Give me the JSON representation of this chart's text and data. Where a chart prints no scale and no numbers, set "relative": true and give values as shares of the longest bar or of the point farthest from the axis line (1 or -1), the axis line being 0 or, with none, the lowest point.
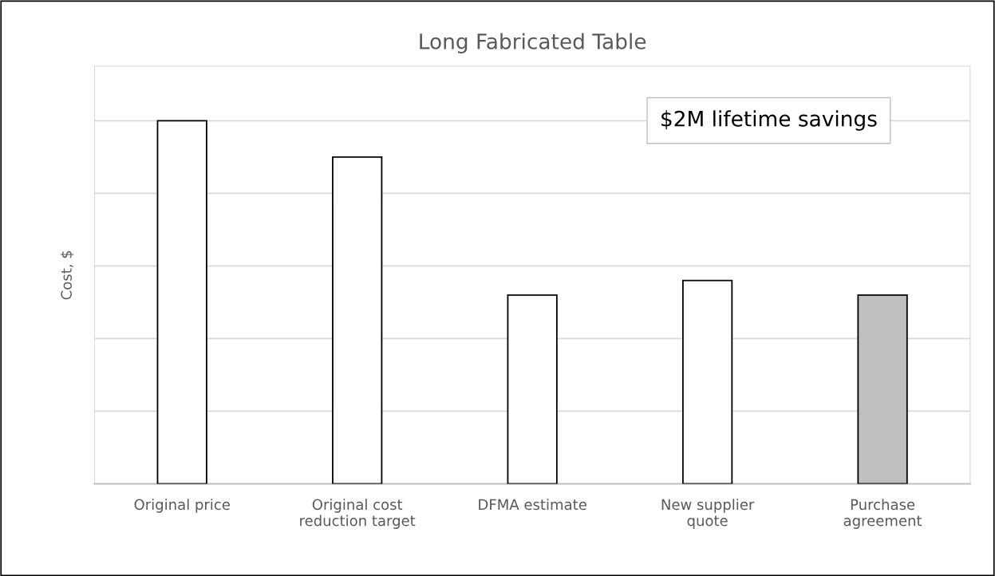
{
  "chart_data": {
    "type": "bar",
    "title": "Long Fabricated Table",
    "ylabel": "Cost, $",
    "categories": [
      "Original price",
      "Original cost\nreduction target",
      "DFMA estimate",
      "New supplier\nquote",
      "Purchase\nagreement"
    ],
    "values": [
      1,
      0.9,
      0.52,
      0.56,
      0.52
    ],
    "colors": [
      "#ffffff",
      "#ffffff",
      "#ffffff",
      "#ffffff",
      "#bfbfbf"
    ],
    "relative": true,
    "grid": "y",
    "annotations": [
      "$2M lifetime savings"
    ]
  }
}
